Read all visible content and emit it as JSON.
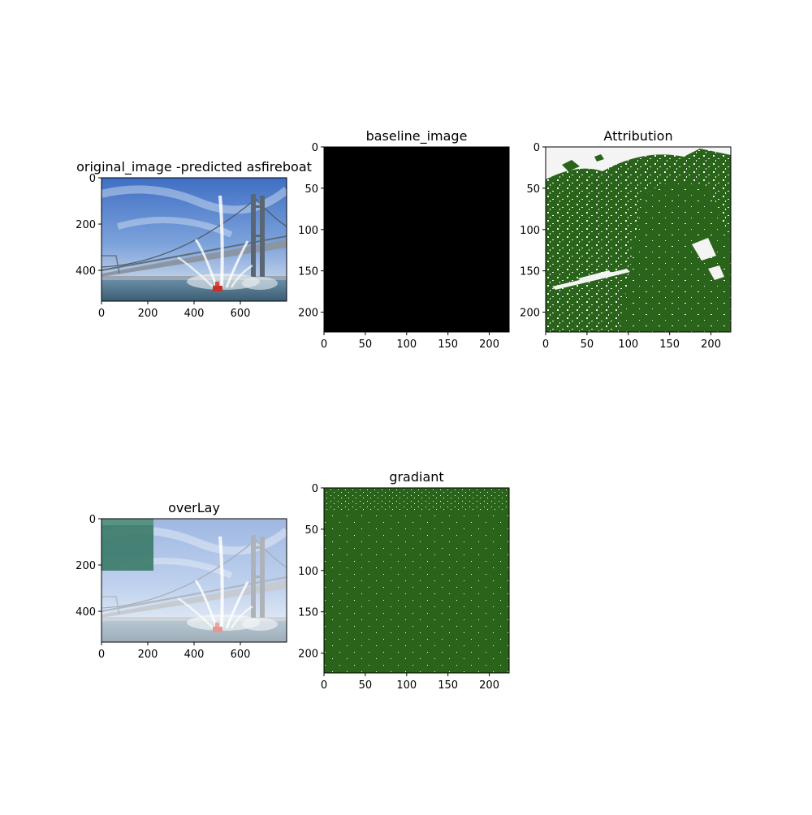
{
  "chart_data": [
    {
      "type": "image",
      "title": "original_image -predicted asfireboat",
      "xlabel": "",
      "ylabel": "",
      "xlim": [
        0,
        800
      ],
      "ylim": [
        533,
        0
      ],
      "xticks": [
        0,
        200,
        400,
        600
      ],
      "yticks": [
        0,
        200,
        400
      ],
      "image": "photo-bridge-fireboat"
    },
    {
      "type": "image",
      "title": "baseline_image",
      "xlabel": "",
      "ylabel": "",
      "xlim": [
        0,
        224
      ],
      "ylim": [
        224,
        0
      ],
      "xticks": [
        0,
        50,
        100,
        150,
        200
      ],
      "yticks": [
        0,
        50,
        100,
        150,
        200
      ],
      "image": "solid-black"
    },
    {
      "type": "heatmap",
      "title": "Attribution",
      "xlabel": "",
      "ylabel": "",
      "xlim": [
        0,
        224
      ],
      "ylim": [
        224,
        0
      ],
      "xticks": [
        0,
        50,
        100,
        150,
        200
      ],
      "yticks": [
        0,
        50,
        100,
        150,
        200
      ],
      "colors": {
        "high": "#2a641a",
        "low": "#f4f4f4"
      },
      "image": "attribution-mask"
    },
    {
      "type": "image",
      "title": "overLay",
      "xlabel": "",
      "ylabel": "",
      "xlim": [
        0,
        800
      ],
      "ylim": [
        533,
        0
      ],
      "xticks": [
        0,
        200,
        400,
        600
      ],
      "yticks": [
        0,
        200,
        400
      ],
      "image": "photo-with-overlay-patch"
    },
    {
      "type": "heatmap",
      "title": "gradiant",
      "xlabel": "",
      "ylabel": "",
      "xlim": [
        0,
        224
      ],
      "ylim": [
        224,
        0
      ],
      "xticks": [
        0,
        50,
        100,
        150,
        200
      ],
      "yticks": [
        0,
        50,
        100,
        150,
        200
      ],
      "colors": {
        "high": "#2a641a",
        "low": "#ffffff"
      },
      "image": "gradient-mask"
    }
  ]
}
